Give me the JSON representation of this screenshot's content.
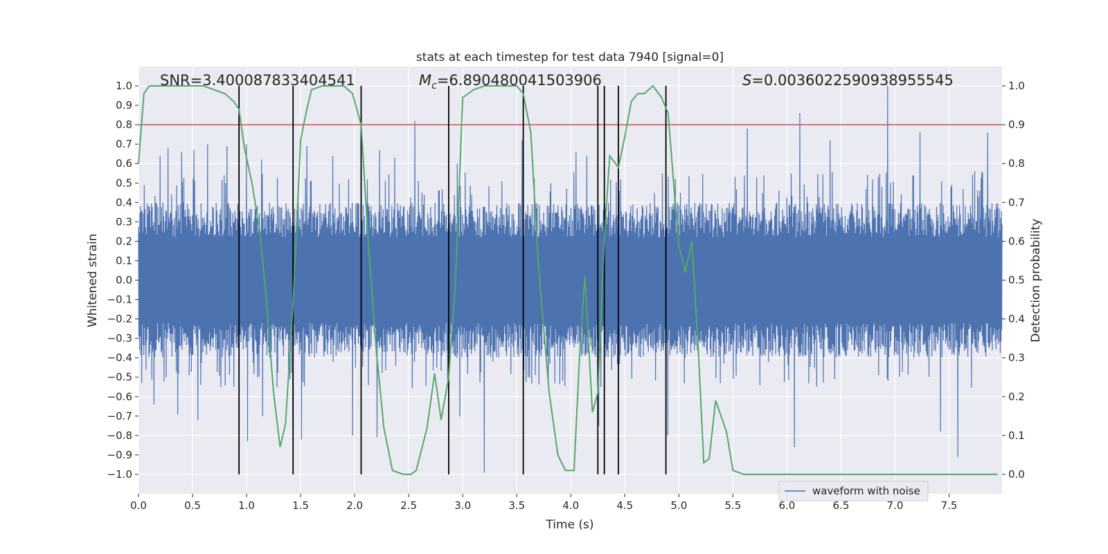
{
  "chart_data": {
    "type": "line",
    "title": "stats at each timestep for test data 7940 [signal=0]",
    "xlabel": "Time (s)",
    "ylabel": "Whitened strain",
    "y2label": "Detection probability",
    "xlim": [
      0.0,
      7.99
    ],
    "ylim": [
      -1.1,
      1.1
    ],
    "y2lim": [
      -0.05,
      1.05
    ],
    "x_ticks": [
      0.0,
      0.5,
      1.0,
      1.5,
      2.0,
      2.5,
      3.0,
      3.5,
      4.0,
      4.5,
      5.0,
      5.5,
      6.0,
      6.5,
      7.0,
      7.5
    ],
    "x_tick_labels": [
      "0.0",
      "0.5",
      "1.0",
      "1.5",
      "2.0",
      "2.5",
      "3.0",
      "3.5",
      "4.0",
      "4.5",
      "5.0",
      "5.5",
      "6.0",
      "6.5",
      "7.0",
      "7.5"
    ],
    "y_ticks": [
      1.0,
      0.9,
      0.8,
      0.7,
      0.6,
      0.5,
      0.4,
      0.3,
      0.2,
      0.1,
      0.0,
      -0.1,
      -0.2,
      -0.3,
      -0.4,
      -0.5,
      -0.6,
      -0.7,
      -0.8,
      -0.9,
      -1.0
    ],
    "y_tick_labels": [
      "1.0",
      "0.9",
      "0.8",
      "0.7",
      "0.6",
      "0.5",
      "0.4",
      "0.3",
      "0.2",
      "0.1",
      "0.0",
      "−0.1",
      "−0.2",
      "−0.3",
      "−0.4",
      "−0.5",
      "−0.6",
      "−0.7",
      "−0.8",
      "−0.9",
      "−1.0"
    ],
    "y2_ticks": [
      1.0,
      0.9,
      0.8,
      0.7,
      0.6,
      0.5,
      0.4,
      0.3,
      0.2,
      0.1,
      0.0
    ],
    "y2_tick_labels": [
      "1.0",
      "0.9",
      "0.8",
      "0.7",
      "0.6",
      "0.5",
      "0.4",
      "0.3",
      "0.2",
      "0.1",
      "0.0"
    ],
    "threshold": {
      "value": 0.9,
      "axis": "y2",
      "color": "#c44e52"
    },
    "event_lines": [
      0.93,
      1.43,
      2.06,
      2.87,
      3.56,
      4.25,
      4.31,
      4.44,
      4.88
    ],
    "waveform": {
      "name": "waveform with noise",
      "color": "#4c72b0",
      "x_range": [
        0.0,
        7.99
      ],
      "typical_amplitude": 0.4,
      "peaks": [
        {
          "x": 0.05,
          "y": 0.49
        },
        {
          "x": 0.2,
          "y": 0.64
        },
        {
          "x": 0.27,
          "y": 0.68
        },
        {
          "x": 0.4,
          "y": 0.66
        },
        {
          "x": 0.51,
          "y": 0.67
        },
        {
          "x": 0.64,
          "y": 0.7
        },
        {
          "x": 0.82,
          "y": 0.69
        },
        {
          "x": 1.0,
          "y": 0.7
        },
        {
          "x": 1.14,
          "y": 0.62
        },
        {
          "x": 1.56,
          "y": 0.69
        },
        {
          "x": 1.8,
          "y": 0.64
        },
        {
          "x": 2.23,
          "y": 0.67
        },
        {
          "x": 2.37,
          "y": 0.63
        },
        {
          "x": 2.56,
          "y": 0.82
        },
        {
          "x": 2.95,
          "y": 0.6
        },
        {
          "x": 3.55,
          "y": 0.72
        },
        {
          "x": 4.05,
          "y": 0.66
        },
        {
          "x": 4.15,
          "y": 0.64
        },
        {
          "x": 5.63,
          "y": 0.78
        },
        {
          "x": 6.12,
          "y": 0.86
        },
        {
          "x": 6.4,
          "y": 0.72
        },
        {
          "x": 6.93,
          "y": 1.0
        },
        {
          "x": 7.23,
          "y": 0.76
        },
        {
          "x": 7.86,
          "y": 0.76
        }
      ],
      "troughs": [
        {
          "x": 0.03,
          "y": -0.53
        },
        {
          "x": 0.14,
          "y": -0.64
        },
        {
          "x": 0.36,
          "y": -0.69
        },
        {
          "x": 0.55,
          "y": -0.72
        },
        {
          "x": 1.01,
          "y": -0.83
        },
        {
          "x": 1.15,
          "y": -0.7
        },
        {
          "x": 1.43,
          "y": -0.76
        },
        {
          "x": 1.51,
          "y": -0.82
        },
        {
          "x": 1.98,
          "y": -0.8
        },
        {
          "x": 2.21,
          "y": -0.81
        },
        {
          "x": 2.97,
          "y": -0.7
        },
        {
          "x": 3.2,
          "y": -0.99
        },
        {
          "x": 4.26,
          "y": -0.75
        },
        {
          "x": 4.9,
          "y": -0.8
        },
        {
          "x": 6.07,
          "y": -0.86
        },
        {
          "x": 7.42,
          "y": -0.78
        },
        {
          "x": 7.58,
          "y": -0.91
        }
      ]
    },
    "probability": {
      "name": "detection probability",
      "axis": "y2",
      "color": "#55a868",
      "x": [
        0.0,
        0.05,
        0.1,
        0.2,
        0.3,
        0.4,
        0.5,
        0.6,
        0.7,
        0.8,
        0.88,
        0.93,
        0.98,
        1.05,
        1.12,
        1.18,
        1.25,
        1.31,
        1.36,
        1.43,
        1.5,
        1.55,
        1.6,
        1.7,
        1.8,
        1.9,
        1.98,
        2.06,
        2.13,
        2.2,
        2.27,
        2.35,
        2.45,
        2.52,
        2.57,
        2.67,
        2.74,
        2.8,
        2.87,
        2.93,
        3.0,
        3.1,
        3.2,
        3.3,
        3.4,
        3.5,
        3.56,
        3.63,
        3.7,
        3.8,
        3.88,
        3.95,
        4.03,
        4.08,
        4.13,
        4.2,
        4.25,
        4.31,
        4.36,
        4.44,
        4.5,
        4.56,
        4.62,
        4.68,
        4.76,
        4.84,
        4.9,
        4.96,
        5.0,
        5.06,
        5.12,
        5.18,
        5.23,
        5.28,
        5.34,
        5.44,
        5.5,
        5.6,
        5.7,
        5.8,
        5.9,
        6.0,
        6.1,
        6.2,
        6.3,
        6.4,
        6.6,
        6.8,
        7.0,
        7.2,
        7.4,
        7.6,
        7.8,
        7.95
      ],
      "y": [
        0.8,
        0.98,
        1.0,
        1.0,
        1.0,
        1.0,
        1.0,
        1.0,
        0.99,
        0.98,
        0.96,
        0.94,
        0.84,
        0.75,
        0.63,
        0.46,
        0.21,
        0.07,
        0.13,
        0.44,
        0.86,
        0.93,
        0.99,
        1.0,
        1.0,
        1.0,
        0.98,
        0.9,
        0.58,
        0.32,
        0.12,
        0.01,
        0.0,
        0.0,
        0.01,
        0.12,
        0.26,
        0.14,
        0.25,
        0.48,
        0.97,
        0.99,
        1.0,
        1.0,
        1.0,
        1.0,
        0.98,
        0.88,
        0.54,
        0.21,
        0.05,
        0.01,
        0.01,
        0.3,
        0.51,
        0.16,
        0.21,
        0.61,
        0.82,
        0.79,
        0.87,
        0.96,
        0.98,
        0.98,
        1.0,
        0.97,
        0.93,
        0.72,
        0.59,
        0.52,
        0.6,
        0.32,
        0.03,
        0.04,
        0.19,
        0.11,
        0.01,
        0.0,
        0.0,
        0.0,
        0.0,
        0.0,
        0.0,
        0.0,
        0.0,
        0.0,
        0.0,
        0.0,
        0.0,
        0.0,
        0.0,
        0.0,
        0.0,
        0.0
      ]
    },
    "annotations": [
      {
        "key": "snr",
        "text": "SNR=3.400087833404541"
      },
      {
        "key": "mc_symbol",
        "text": "M"
      },
      {
        "key": "mc_subscript",
        "text": "c"
      },
      {
        "key": "mc_value",
        "text": "=6.890480041503906"
      },
      {
        "key": "s_symbol",
        "text": "S"
      },
      {
        "key": "s_value",
        "text": "=0.0036022590938955545"
      }
    ],
    "legend": {
      "entries": [
        "waveform with noise"
      ],
      "placement": "lower-right"
    },
    "grid": true,
    "background": "#eaeaf2"
  }
}
